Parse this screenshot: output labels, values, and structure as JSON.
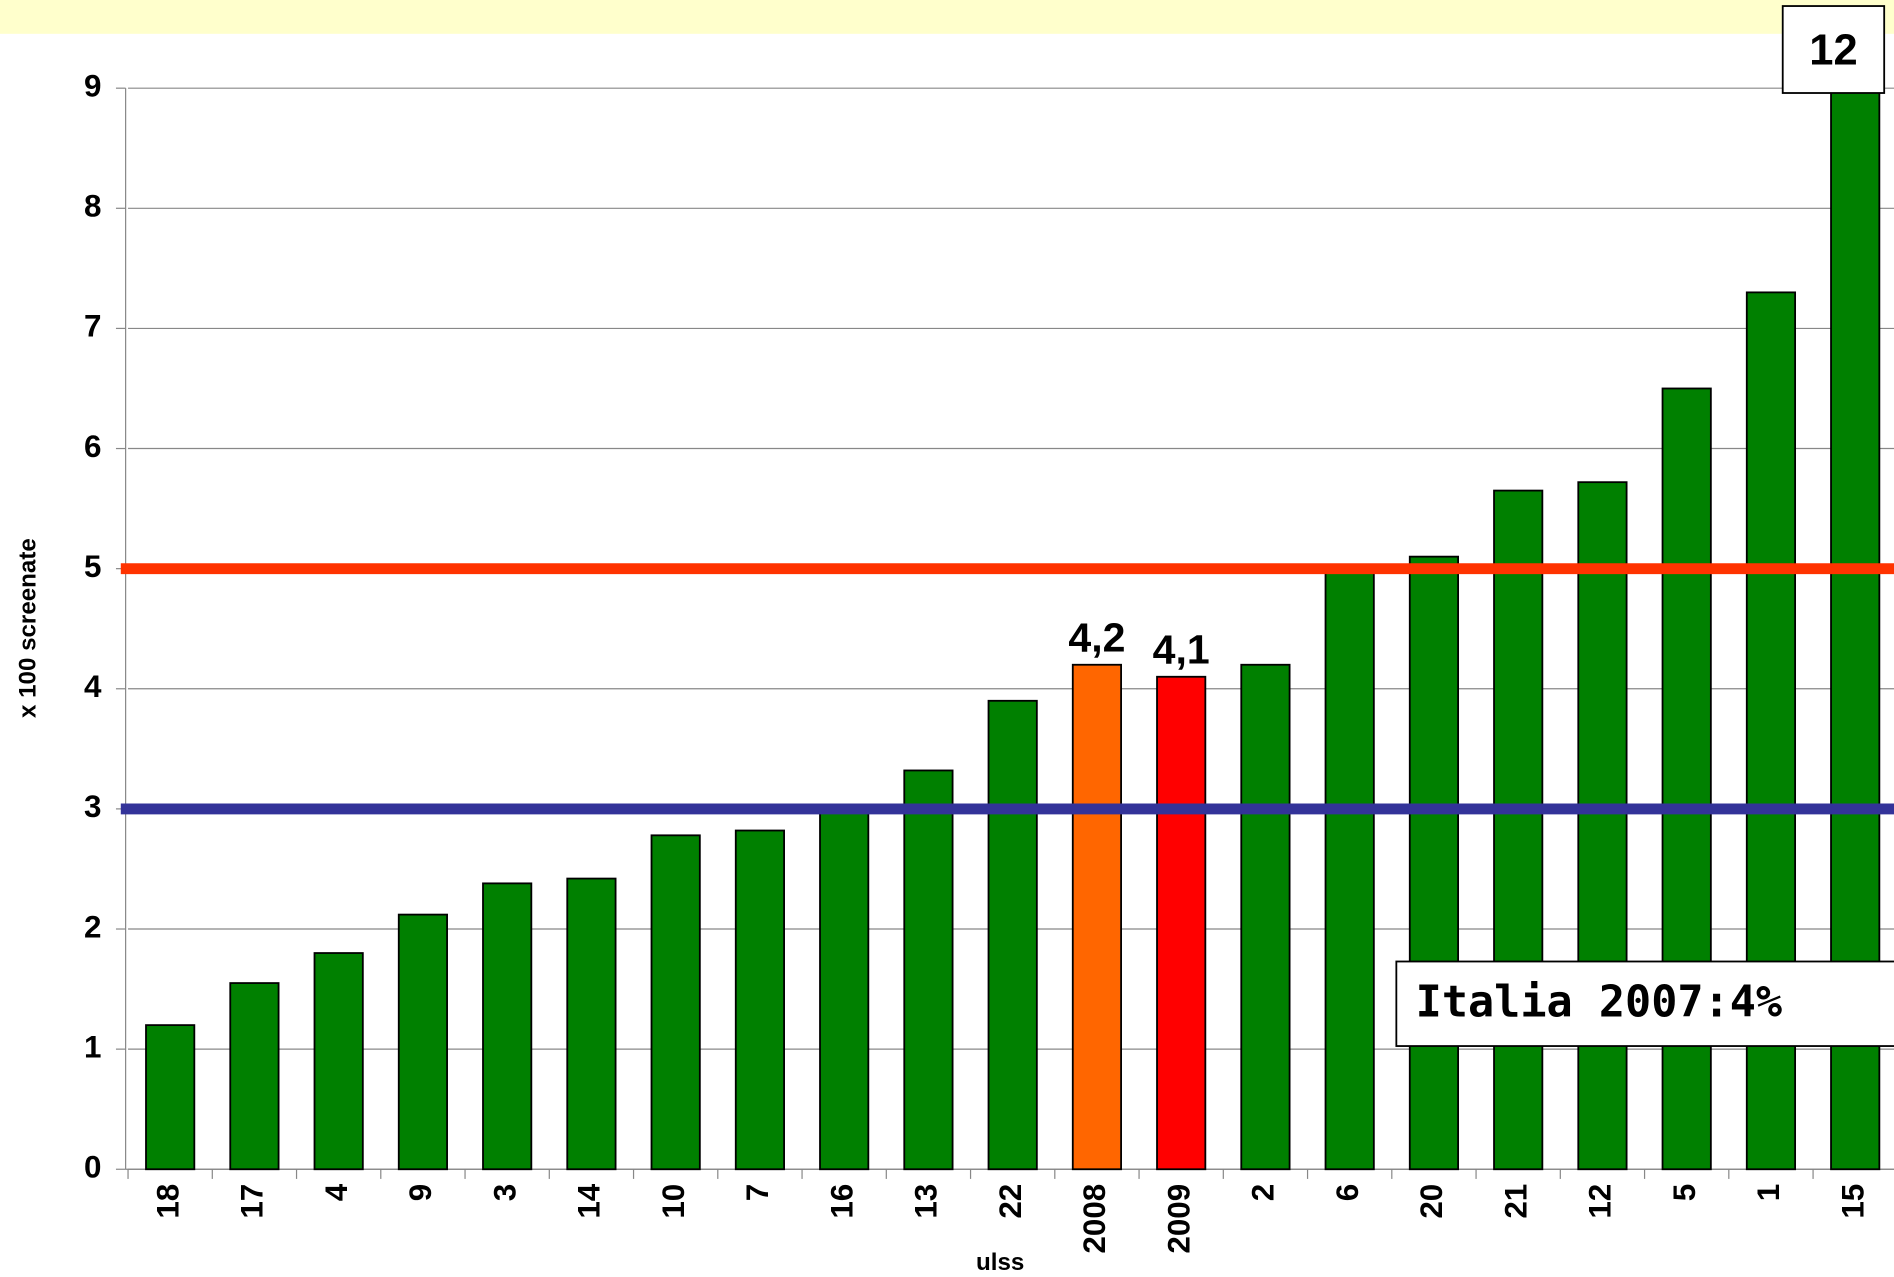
{
  "chart_data": {
    "type": "bar",
    "categories": [
      "18",
      "17",
      "4",
      "9",
      "3",
      "14",
      "10",
      "7",
      "16",
      "13",
      "22",
      "2008",
      "2009",
      "2",
      "6",
      "20",
      "21",
      "12",
      "5",
      "1",
      "15"
    ],
    "values": [
      1.2,
      1.55,
      1.8,
      2.12,
      2.38,
      2.42,
      2.78,
      2.82,
      3.0,
      3.32,
      3.9,
      4.2,
      4.1,
      4.2,
      5.0,
      5.1,
      5.65,
      5.72,
      6.5,
      7.3,
      12
    ],
    "value_labels": [
      null,
      null,
      null,
      null,
      null,
      null,
      null,
      null,
      null,
      null,
      null,
      "4,2",
      "4,1",
      null,
      null,
      null,
      null,
      null,
      null,
      null,
      "12"
    ],
    "colors": [
      "#008000",
      "#008000",
      "#008000",
      "#008000",
      "#008000",
      "#008000",
      "#008000",
      "#008000",
      "#008000",
      "#008000",
      "#008000",
      "#ff6600",
      "#ff0000",
      "#008000",
      "#008000",
      "#008000",
      "#008000",
      "#008000",
      "#008000",
      "#008000",
      "#008000"
    ],
    "ylim": [
      0,
      9
    ],
    "yticks": [
      0,
      1,
      2,
      3,
      4,
      5,
      6,
      7,
      8,
      9
    ],
    "grid": true,
    "ylabel": "x 100 screenate",
    "xlabel": "ulss",
    "reference_lines": [
      {
        "value": 5,
        "color": "#ff3300"
      },
      {
        "value": 3,
        "color": "#333399"
      }
    ],
    "annotation": "Italia 2007:4%"
  }
}
